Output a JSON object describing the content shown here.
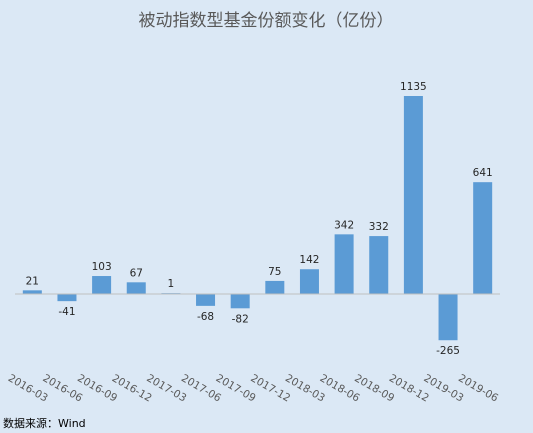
{
  "chart_data": {
    "type": "bar",
    "title": "被动指数型基金份额变化（亿份）",
    "categories": [
      "2016-03",
      "2016-06",
      "2016-09",
      "2016-12",
      "2017-03",
      "2017-06",
      "2017-09",
      "2017-12",
      "2018-03",
      "2018-06",
      "2018-09",
      "2018-12",
      "2019-03",
      "2019-06"
    ],
    "values": [
      21,
      -41,
      103,
      67,
      1,
      -68,
      -82,
      75,
      142,
      342,
      332,
      1135,
      -265,
      641
    ],
    "xlabel": "",
    "ylabel": "",
    "ylim": [
      -300,
      1200
    ],
    "grid": false,
    "legend": "none",
    "bar_color": "#5b9bd5",
    "background": "#dbe8f5"
  },
  "source": "数据来源：Wind"
}
